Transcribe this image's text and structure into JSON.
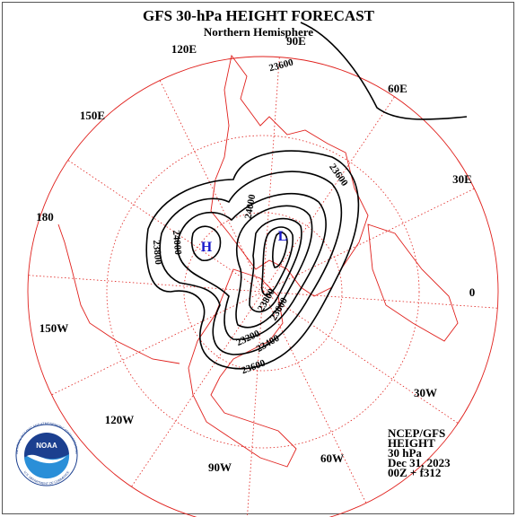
{
  "header": {
    "title": "GFS 30-hPa HEIGHT FORECAST",
    "subtitle": "Northern Hemisphere"
  },
  "longitude_labels": [
    "90E",
    "60E",
    "30E",
    "0",
    "30W",
    "60W",
    "90W",
    "120W",
    "150W",
    "180",
    "150E",
    "120E"
  ],
  "contour_labels": [
    "23600",
    "23600",
    "24000",
    "23800",
    "24000",
    "23800",
    "23600",
    "23200",
    "23400",
    "23600"
  ],
  "centers": [
    "H",
    "L"
  ],
  "info": [
    "NCEP/GFS",
    "HEIGHT",
    "30 hPa",
    "Dec 31, 2023",
    "00Z + f312"
  ],
  "logo": {
    "name": "NOAA",
    "top": "NATIONAL OCEANIC AND ATMOSPHERIC ADMINISTRATION",
    "bottom": "U.S. DEPARTMENT OF COMMERCE"
  }
}
